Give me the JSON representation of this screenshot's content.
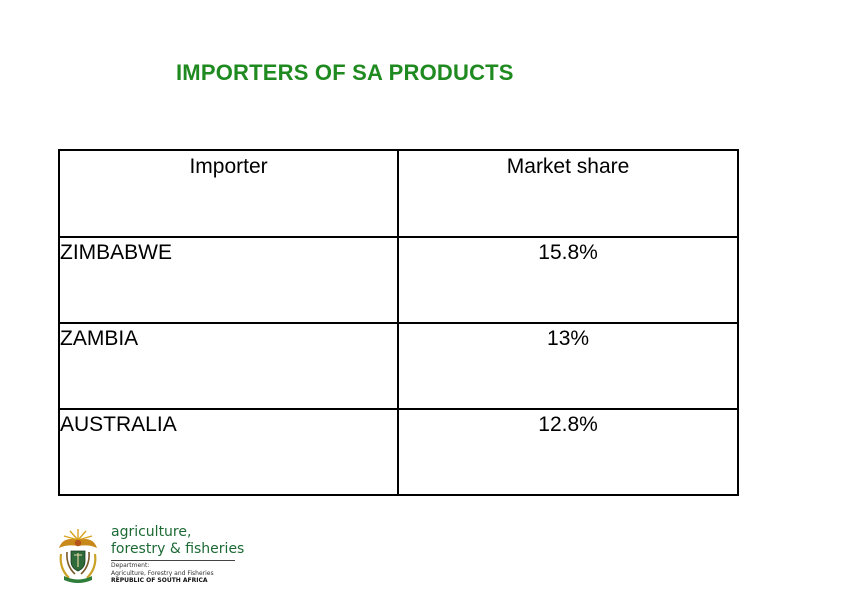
{
  "title": "IMPORTERS OF SA PRODUCTS",
  "table": {
    "headers": [
      "Importer",
      "Market share"
    ],
    "rows": [
      [
        "ZIMBABWE",
        "15.8%"
      ],
      [
        "ZAMBIA",
        "13%"
      ],
      [
        "AUSTRALIA",
        "12.8%"
      ]
    ]
  },
  "logo": {
    "line1": "agriculture,",
    "line2": "forestry & fisheries",
    "line3": "Department:",
    "line4": "Agriculture, Forestry and Fisheries",
    "line5": "REPUBLIC OF SOUTH AFRICA",
    "icon": "coat-of-arms-icon"
  },
  "colors": {
    "title": "#1f8a1f",
    "logo_text": "#1d6a35"
  }
}
